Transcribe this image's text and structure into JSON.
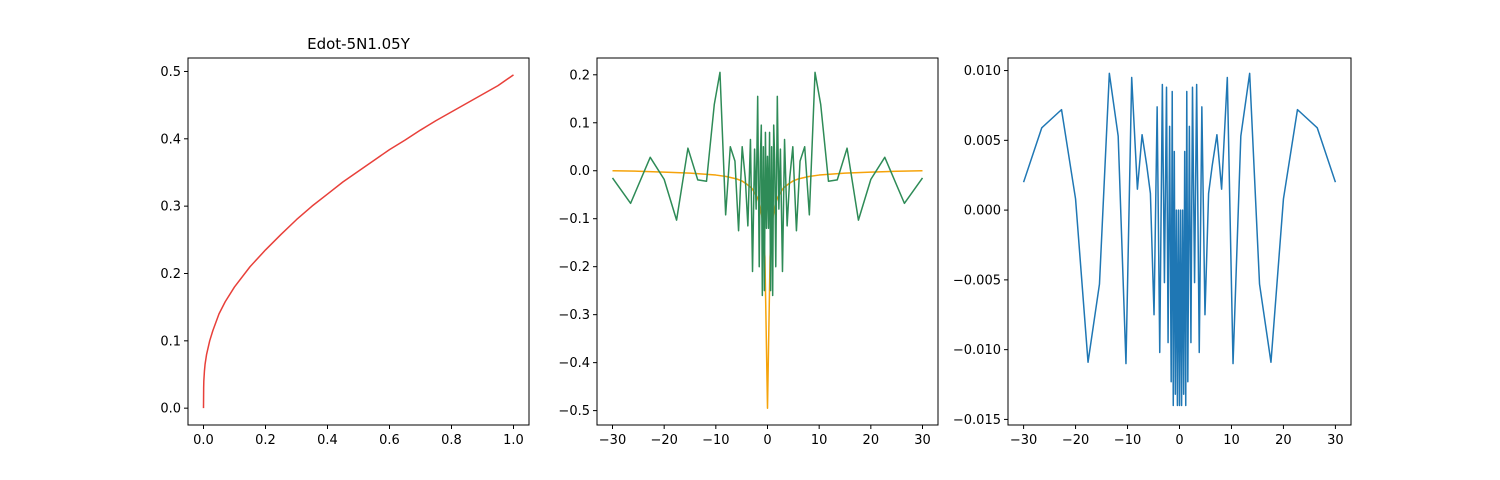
{
  "chart_data": [
    {
      "type": "line",
      "title": "Edot-5N1.05Y",
      "xlabel": "",
      "ylabel": "",
      "xlim": [
        -0.05,
        1.05
      ],
      "ylim": [
        -0.025,
        0.52
      ],
      "xticks": [
        0.0,
        0.2,
        0.4,
        0.6,
        0.8,
        1.0
      ],
      "xtick_labels": [
        "0.0",
        "0.2",
        "0.4",
        "0.6",
        "0.8",
        "1.0"
      ],
      "yticks": [
        0.0,
        0.1,
        0.2,
        0.3,
        0.4,
        0.5
      ],
      "ytick_labels": [
        "0.0",
        "0.1",
        "0.2",
        "0.3",
        "0.4",
        "0.5"
      ],
      "grid": false,
      "series": [
        {
          "color": "#e8403a",
          "x": [
            0.0,
            0.0005,
            0.001,
            0.003,
            0.005,
            0.01,
            0.02,
            0.03,
            0.05,
            0.07,
            0.1,
            0.15,
            0.2,
            0.25,
            0.3,
            0.35,
            0.4,
            0.45,
            0.5,
            0.55,
            0.6,
            0.65,
            0.7,
            0.75,
            0.8,
            0.85,
            0.9,
            0.95,
            1.0
          ],
          "y": [
            0.0,
            0.03,
            0.04,
            0.055,
            0.065,
            0.08,
            0.1,
            0.115,
            0.14,
            0.158,
            0.18,
            0.21,
            0.235,
            0.258,
            0.28,
            0.3,
            0.318,
            0.336,
            0.352,
            0.368,
            0.384,
            0.398,
            0.413,
            0.427,
            0.44,
            0.453,
            0.466,
            0.479,
            0.495
          ]
        }
      ]
    },
    {
      "type": "line",
      "title": "",
      "xlabel": "",
      "ylabel": "",
      "xlim": [
        -33,
        33
      ],
      "ylim": [
        -0.53,
        0.235
      ],
      "xticks": [
        -30,
        -20,
        -10,
        0,
        10,
        20,
        30
      ],
      "xtick_labels": [
        "−30",
        "−20",
        "−10",
        "0",
        "10",
        "20",
        "30"
      ],
      "yticks": [
        -0.5,
        -0.4,
        -0.3,
        -0.2,
        -0.1,
        0.0,
        0.1,
        0.2
      ],
      "ytick_labels": [
        "−0.5",
        "−0.4",
        "−0.3",
        "−0.2",
        "−0.1",
        "0.0",
        "0.1",
        "0.2"
      ],
      "grid": false,
      "series": [
        {
          "color": "#f5a30a",
          "x": [
            -30,
            -25,
            -20,
            -15,
            -10,
            -8,
            -6,
            -5,
            -4,
            -3,
            -2,
            -1.5,
            -1,
            -0.5,
            0,
            0.5,
            1,
            1.5,
            2,
            3,
            4,
            5,
            6,
            8,
            10,
            15,
            20,
            25,
            30
          ],
          "y": [
            0.0,
            -0.001,
            -0.003,
            -0.005,
            -0.009,
            -0.012,
            -0.017,
            -0.021,
            -0.028,
            -0.037,
            -0.055,
            -0.07,
            -0.1,
            -0.18,
            -0.495,
            -0.18,
            -0.1,
            -0.07,
            -0.055,
            -0.037,
            -0.028,
            -0.021,
            -0.017,
            -0.012,
            -0.009,
            -0.005,
            -0.003,
            -0.001,
            0.0
          ]
        },
        {
          "color": "#2e8b57",
          "x": [
            -30,
            -26.5,
            -22.7,
            -20,
            -17.6,
            -15.4,
            -13.5,
            -11.8,
            -10.3,
            -9.2,
            -8.1,
            -7.2,
            -6.3,
            -5.6,
            -4.9,
            -4.3,
            -3.8,
            -3.3,
            -2.9,
            -2.5,
            -2.2,
            -1.9,
            -1.6,
            -1.4,
            -1.2,
            -1.0,
            -0.8,
            -0.6,
            -0.4,
            -0.2,
            0,
            0.2,
            0.4,
            0.6,
            0.8,
            1.0,
            1.2,
            1.4,
            1.6,
            1.9,
            2.2,
            2.5,
            2.9,
            3.3,
            3.8,
            4.3,
            4.9,
            5.6,
            6.3,
            7.2,
            8.1,
            9.2,
            10.3,
            11.8,
            13.5,
            15.4,
            17.6,
            20,
            22.7,
            26.5,
            30
          ],
          "y": [
            -0.015,
            -0.068,
            0.028,
            -0.018,
            -0.103,
            0.047,
            -0.019,
            -0.022,
            0.138,
            0.205,
            -0.092,
            0.05,
            0.02,
            -0.125,
            0.05,
            -0.015,
            -0.115,
            0.065,
            -0.21,
            0.045,
            -0.08,
            0.155,
            -0.2,
            0.02,
            0.095,
            -0.26,
            0.05,
            -0.25,
            0.08,
            -0.12,
            0.03,
            -0.12,
            0.08,
            -0.25,
            0.05,
            -0.26,
            0.095,
            0.02,
            -0.2,
            0.155,
            -0.08,
            0.045,
            -0.21,
            0.065,
            -0.115,
            -0.015,
            0.05,
            -0.125,
            0.02,
            0.05,
            -0.092,
            0.205,
            0.138,
            -0.022,
            -0.019,
            0.047,
            -0.103,
            -0.018,
            0.028,
            -0.068,
            -0.015
          ]
        }
      ]
    },
    {
      "type": "line",
      "title": "",
      "xlabel": "",
      "ylabel": "",
      "xlim": [
        -33,
        33
      ],
      "ylim": [
        -0.0154,
        0.0109
      ],
      "xticks": [
        -30,
        -20,
        -10,
        0,
        10,
        20,
        30
      ],
      "xtick_labels": [
        "−30",
        "−20",
        "−10",
        "0",
        "10",
        "20",
        "30"
      ],
      "yticks": [
        -0.015,
        -0.01,
        -0.005,
        0.0,
        0.005,
        0.01
      ],
      "ytick_labels": [
        "−0.015",
        "−0.010",
        "−0.005",
        "0.000",
        "0.005",
        "0.010"
      ],
      "grid": false,
      "series": [
        {
          "color": "#1f77b4",
          "x": [
            -30,
            -26.5,
            -22.7,
            -20,
            -17.6,
            -15.4,
            -13.5,
            -11.8,
            -10.3,
            -9.2,
            -8.1,
            -7.2,
            -6.3,
            -5.6,
            -4.9,
            -4.3,
            -3.8,
            -3.3,
            -2.9,
            -2.5,
            -2.2,
            -1.9,
            -1.6,
            -1.4,
            -1.2,
            -1.0,
            -0.8,
            -0.6,
            -0.4,
            -0.2,
            0,
            0.2,
            0.4,
            0.6,
            0.8,
            1.0,
            1.2,
            1.4,
            1.6,
            1.9,
            2.2,
            2.5,
            2.9,
            3.3,
            3.8,
            4.3,
            4.9,
            5.6,
            6.3,
            7.2,
            8.1,
            9.2,
            10.3,
            11.8,
            13.5,
            15.4,
            17.6,
            20,
            22.7,
            26.5,
            30
          ],
          "y": [
            0.002,
            0.0059,
            0.0072,
            0.0008,
            -0.0109,
            -0.0053,
            0.0098,
            0.0053,
            -0.011,
            0.0095,
            0.0015,
            0.0054,
            0.0032,
            0.0012,
            -0.0075,
            0.0074,
            -0.0102,
            0.009,
            -0.0052,
            0.0088,
            -0.0095,
            0.006,
            -0.0123,
            0.0085,
            -0.014,
            0.0042,
            -0.0132,
            0.0,
            -0.014,
            0.0,
            -0.014,
            0.0,
            -0.014,
            0.0,
            -0.0132,
            0.0042,
            -0.014,
            0.0085,
            -0.0123,
            0.006,
            -0.0095,
            0.0088,
            -0.0052,
            0.009,
            -0.0102,
            0.0074,
            -0.0075,
            0.0012,
            0.0032,
            0.0054,
            0.0015,
            0.0095,
            -0.011,
            0.0053,
            0.0098,
            -0.0053,
            -0.0109,
            0.0008,
            0.0072,
            0.0059,
            0.002
          ]
        }
      ]
    }
  ]
}
